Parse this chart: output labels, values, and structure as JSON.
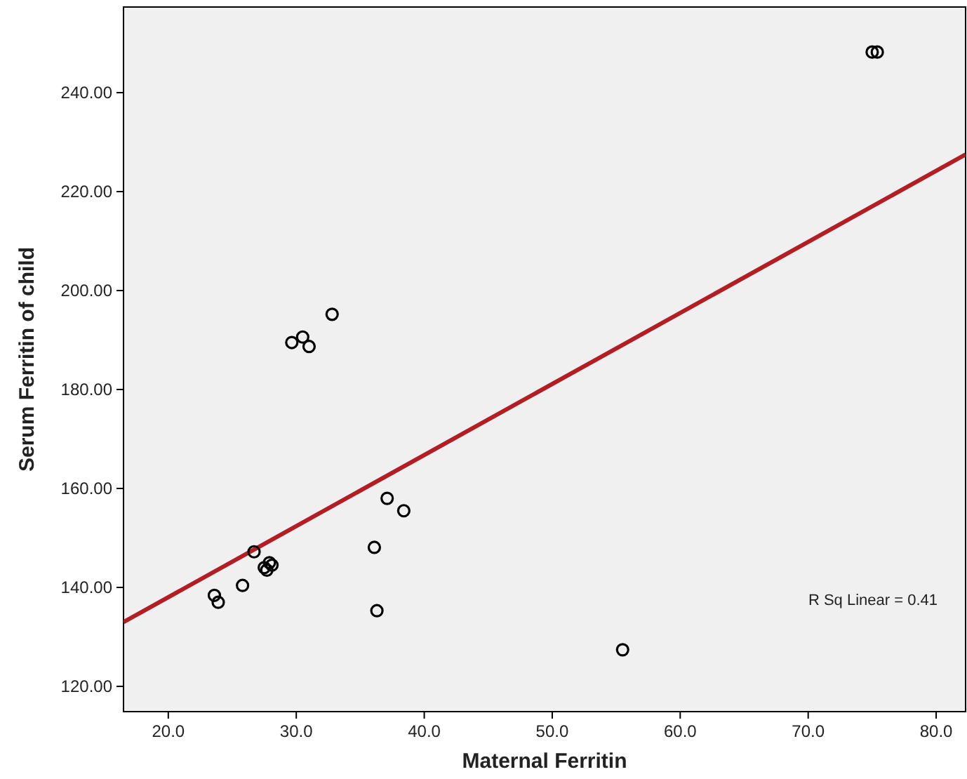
{
  "chart_data": {
    "type": "scatter",
    "xlabel": "Maternal Ferritin",
    "ylabel": "Serum Ferritin of child",
    "xlim": [
      16.5,
      82.3
    ],
    "ylim": [
      114.9,
      257.3
    ],
    "xticks": [
      {
        "value": 20,
        "label": "20.0"
      },
      {
        "value": 30,
        "label": "30.0"
      },
      {
        "value": 40,
        "label": "40.0"
      },
      {
        "value": 50,
        "label": "50.0"
      },
      {
        "value": 60,
        "label": "60.0"
      },
      {
        "value": 70,
        "label": "70.0"
      },
      {
        "value": 80,
        "label": "80.0"
      }
    ],
    "yticks": [
      {
        "value": 120,
        "label": "120.00"
      },
      {
        "value": 140,
        "label": "140.00"
      },
      {
        "value": 160,
        "label": "160.00"
      },
      {
        "value": 180,
        "label": "180.00"
      },
      {
        "value": 200,
        "label": "200.00"
      },
      {
        "value": 220,
        "label": "220.00"
      },
      {
        "value": 240,
        "label": "240.00"
      }
    ],
    "grid": false,
    "marker": "circle",
    "series": [
      {
        "color": "#000000",
        "x": [
          29.65,
          30.5,
          31.0,
          32.8,
          23.6,
          23.9,
          25.8,
          26.7,
          27.5,
          27.9,
          27.7,
          28.1,
          37.1,
          38.4,
          36.1,
          36.3,
          55.5,
          75.0,
          75.4
        ],
        "values": [
          189.5,
          190.6,
          188.7,
          195.2,
          138.4,
          137.0,
          140.4,
          147.2,
          144.0,
          145.0,
          143.5,
          144.5,
          158.0,
          155.5,
          148.1,
          135.3,
          127.4,
          248.2,
          248.2
        ]
      },
      {
        "type": "line",
        "color": "#b21e23",
        "x": [
          16.5,
          82.3
        ],
        "values": [
          133.0,
          227.5
        ],
        "marker": "none",
        "line_style": "solid"
      }
    ],
    "annotations": [
      "R Sq Linear = 0.41"
    ]
  }
}
